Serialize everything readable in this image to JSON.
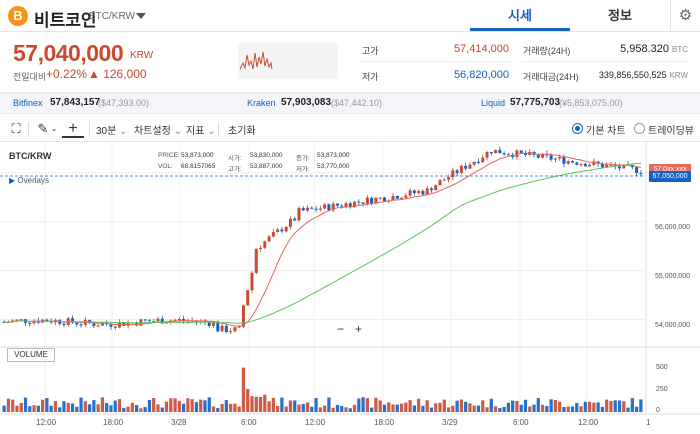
{
  "header": {
    "coin_logo_symbol": "B",
    "coin_name": "비트코인",
    "pair": "BTC/KRW",
    "tabs": [
      {
        "label": "시세",
        "active": true
      },
      {
        "label": "정보",
        "active": false
      }
    ],
    "settings_icon": "gear-icon"
  },
  "price": {
    "current": "57,040,000",
    "unit": "KRW",
    "change_label": "전일대비",
    "change_pct": "+0.22%",
    "change_amount": "▲ 126,000",
    "color_up": "#c84a31",
    "color_down": "#1261c4"
  },
  "stats": {
    "high_label": "고가",
    "high": "57,414,000",
    "low_label": "저가",
    "low": "56,820,000",
    "volume_label": "거래량(24H)",
    "volume": "5,958.320",
    "volume_unit": "BTC",
    "amount_label": "거래대금(24H)",
    "amount": "339,856,550,525",
    "amount_unit": "KRW"
  },
  "exchanges": [
    {
      "name": "Bitfinex",
      "price": "57,843,157",
      "sub": "($47,393.00)"
    },
    {
      "name": "Kraken",
      "price": "57,903,083",
      "sub": "($47,442.10)"
    },
    {
      "name": "Liquid",
      "price": "57,775,703",
      "sub": "(¥5,853,075.00)"
    }
  ],
  "toolbar": {
    "interval": "30분",
    "chart_settings": "차트설정",
    "indicators": "지표",
    "reset": "초기화",
    "basic_chart": "기본 차트",
    "tradingview": "트레이딩뷰"
  },
  "legend": {
    "symbol": "BTC/KRW",
    "overlays": "Overlays",
    "price_label": "PRICE:",
    "price": "53,873,000",
    "vol_label": "VOL:",
    "vol": "68.6157065",
    "open_label": "시가:",
    "open": "53,830,000",
    "high_label": "고가:",
    "high": "53,887,000",
    "close_label": "종가:",
    "close": "53,873,000",
    "low_label": "저가:",
    "low": "53,770,000",
    "volume_title": "VOLUME",
    "zoom_out": "−",
    "zoom_in": "+"
  },
  "chart_data": {
    "type": "candlestick",
    "price_axis": [
      "57,000,000",
      "56,000,000",
      "55,000,000",
      "54,000,000"
    ],
    "price_axis_values": [
      57000000,
      56000000,
      55000000,
      54000000
    ],
    "volume_axis": [
      "500",
      "250",
      "0"
    ],
    "volume_axis_values": [
      500,
      250,
      0
    ],
    "time_axis": [
      "12:00",
      "18:00",
      "3/28",
      "6:00",
      "12:00",
      "18:00",
      "3/29",
      "6:00",
      "12:00",
      "1"
    ],
    "last_price_tag": "57,050,000",
    "ma_tag": "57,0xx,xxx",
    "price_range": [
      53500000,
      57550000
    ],
    "volume_range": [
      0,
      650
    ],
    "ma_short_color": "#e8665a",
    "ma_long_color": "#5cc258",
    "up_color": "#c84a31",
    "down_color": "#1261c4"
  }
}
